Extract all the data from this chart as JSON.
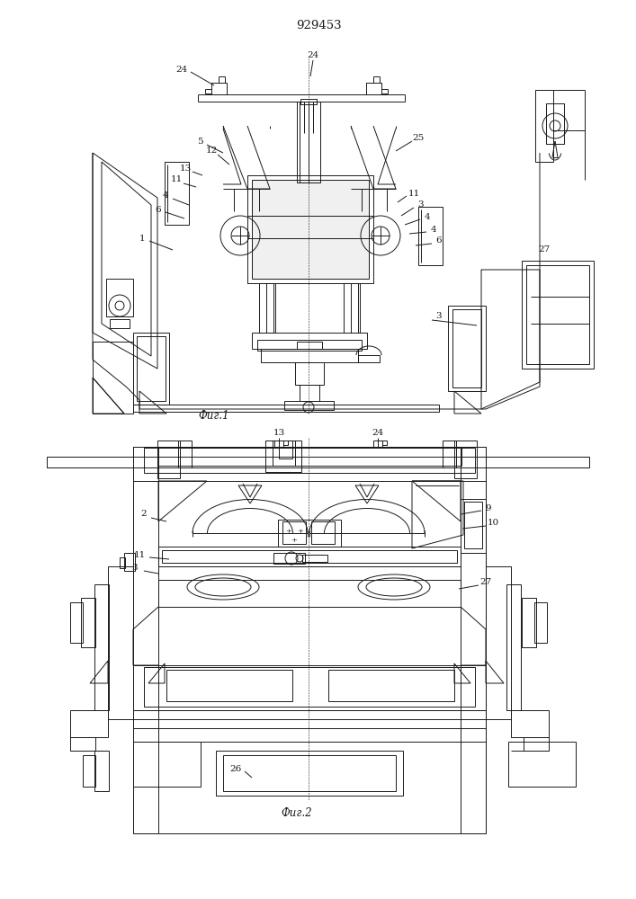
{
  "title": "929453",
  "fig1_label": "Фиг.1",
  "fig2_label": "Фиг.2",
  "bg_color": "#ffffff",
  "line_color": "#1a1a1a",
  "lw": 0.7,
  "fig_width": 7.07,
  "fig_height": 10.0,
  "dpi": 100
}
